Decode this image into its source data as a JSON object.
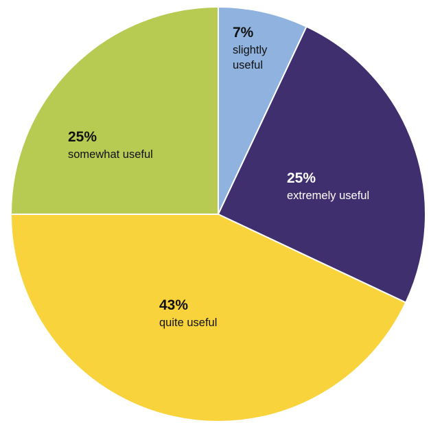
{
  "chart_data": {
    "type": "pie",
    "title": "",
    "start_angle_deg": 0,
    "direction": "clockwise",
    "slices": [
      {
        "label": "slightly useful",
        "label_lines": [
          "slightly",
          "useful"
        ],
        "value": 7,
        "display": "7%",
        "color": "#8fb2de",
        "text_color": "#111111"
      },
      {
        "label": "extremely useful",
        "label_lines": [
          "extremely useful"
        ],
        "value": 25,
        "display": "25%",
        "color": "#3f2f6e",
        "text_color": "#ffffff"
      },
      {
        "label": "quite useful",
        "label_lines": [
          "quite useful"
        ],
        "value": 43,
        "display": "43%",
        "color": "#f8d33b",
        "text_color": "#111111"
      },
      {
        "label": "somewhat useful",
        "label_lines": [
          "somewhat useful"
        ],
        "value": 25,
        "display": "25%",
        "color": "#b7ca52",
        "text_color": "#111111"
      }
    ]
  }
}
